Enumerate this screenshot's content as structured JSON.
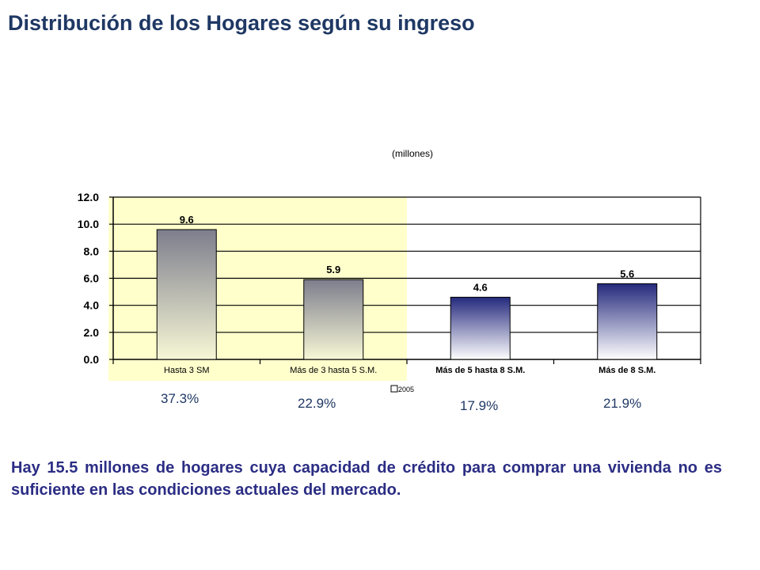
{
  "slide": {
    "title": "Distribución de los Hogares según su ingreso",
    "unit_label": "(millones)",
    "note": "Hay 15.5 millones de hogares cuya capacidad de crédito para comprar una vivienda no es suficiente en las condiciones actuales del mercado."
  },
  "chart_data": {
    "type": "bar",
    "title": "",
    "xlabel": "",
    "ylabel": "",
    "categories": [
      "Hasta 3 SM",
      "Más de 3 hasta 5 S.M.",
      "Más de 5 hasta 8 S.M.",
      "Más de 8 S.M."
    ],
    "series": [
      {
        "name": "2005",
        "values": [
          9.6,
          5.9,
          4.6,
          5.6
        ]
      }
    ],
    "data_labels": [
      "9.6",
      "5.9",
      "4.6",
      "5.6"
    ],
    "ylim": [
      0,
      12
    ],
    "yticks": [
      "0.0",
      "2.0",
      "4.0",
      "6.0",
      "8.0",
      "10.0",
      "12.0"
    ],
    "grid": true,
    "legend": "bottom",
    "shares": [
      "37.3%",
      "22.9%",
      "17.9%",
      "21.9%"
    ],
    "highlight": {
      "categories": [
        "Hasta 3 SM",
        "Más de 3 hasta 5 S.M."
      ],
      "color": "#ffffcc"
    },
    "colors": {
      "highlighted_bar_top": "#7d7e8c",
      "highlighted_bar_bottom": "#f7f7d6",
      "other_bar_top": "#252a7d",
      "other_bar_bottom": "#ffffff"
    }
  }
}
